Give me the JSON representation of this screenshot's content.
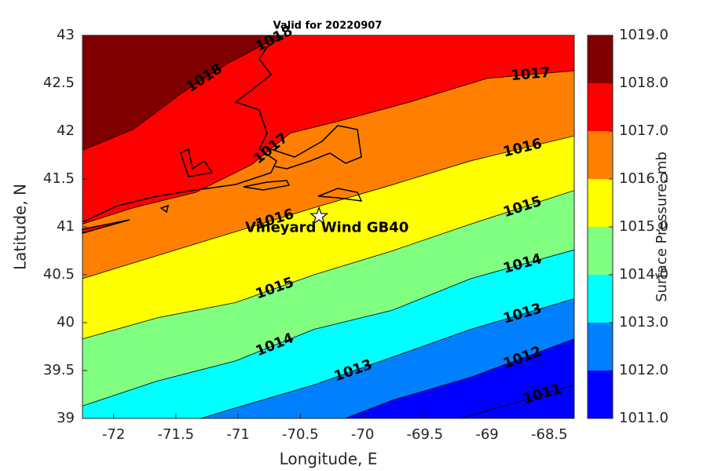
{
  "chart_data": {
    "type": "contourf",
    "title": "Valid for 20220907",
    "x_label": "Longitude, E",
    "y_label": "Latitude, N",
    "colorbar_label": "Surface Pressure, mb",
    "xlim": [
      -72.25,
      -68.3
    ],
    "ylim": [
      39,
      43
    ],
    "xticks": [
      -72,
      -71.5,
      -71,
      -70.5,
      -70,
      -69.5,
      -69,
      -68.5
    ],
    "yticks": [
      39,
      39.5,
      40,
      40.5,
      41,
      41.5,
      42,
      42.5,
      43
    ],
    "clim": [
      1011,
      1019
    ],
    "cticks": [
      {
        "value": 1011,
        "label": "1011.0"
      },
      {
        "value": 1012,
        "label": "1012.0"
      },
      {
        "value": 1013,
        "label": "1013.0"
      },
      {
        "value": 1014,
        "label": "1014.0"
      },
      {
        "value": 1015,
        "label": "1015.0"
      },
      {
        "value": 1016,
        "label": "1016.0"
      },
      {
        "value": 1017,
        "label": "1017.0"
      },
      {
        "value": 1018,
        "label": "1018.0"
      },
      {
        "value": 1019,
        "label": "1019.0"
      }
    ],
    "colors": [
      "#0000ff",
      "#0080ff",
      "#00ffff",
      "#80ff80",
      "#ffff00",
      "#ff8000",
      "#ff0000",
      "#800000"
    ],
    "contours": [
      {
        "level": 1011,
        "x": [
          -69.22,
          -68.81,
          -68.3
        ],
        "y": [
          39.0,
          39.15,
          39.35
        ]
      },
      {
        "level": 1012,
        "x": [
          -70.14,
          -69.76,
          -69.13,
          -68.3
        ],
        "y": [
          39.0,
          39.19,
          39.43,
          39.83
        ]
      },
      {
        "level": 1013,
        "x": [
          -71.3,
          -71.02,
          -70.39,
          -69.76,
          -69.13,
          -68.3
        ],
        "y": [
          39.0,
          39.11,
          39.35,
          39.64,
          39.93,
          40.25
        ]
      },
      {
        "level": 1014,
        "x": [
          -72.25,
          -71.65,
          -71.02,
          -70.39,
          -69.76,
          -69.13,
          -68.3
        ],
        "y": [
          39.13,
          39.39,
          39.6,
          39.93,
          40.13,
          40.46,
          40.76
        ]
      },
      {
        "level": 1015,
        "x": [
          -72.25,
          -71.65,
          -71.02,
          -70.39,
          -69.76,
          -69.13,
          -68.3
        ],
        "y": [
          39.83,
          40.05,
          40.21,
          40.5,
          40.75,
          41.03,
          41.38
        ]
      },
      {
        "level": 1016,
        "x": [
          -72.25,
          -71.65,
          -71.02,
          -70.39,
          -69.76,
          -69.13,
          -68.3
        ],
        "y": [
          40.46,
          40.7,
          40.95,
          41.2,
          41.44,
          41.69,
          41.95
        ]
      },
      {
        "level": 1017,
        "x": [
          -72.25,
          -71.84,
          -71.34,
          -70.89,
          -70.58,
          -70.2,
          -69.63,
          -69.0,
          -68.3
        ],
        "y": [
          41.03,
          41.2,
          41.36,
          41.65,
          41.98,
          42.1,
          42.3,
          42.55,
          42.63
        ]
      },
      {
        "level": 1018,
        "x": [
          -72.25,
          -71.84,
          -71.46,
          -71.08,
          -70.77,
          -70.65
        ],
        "y": [
          41.8,
          42.02,
          42.39,
          42.71,
          42.92,
          43.0
        ]
      }
    ],
    "annotation": {
      "text": "Vineyard Wind GB40",
      "x": -70.35,
      "y": 41.11
    }
  }
}
